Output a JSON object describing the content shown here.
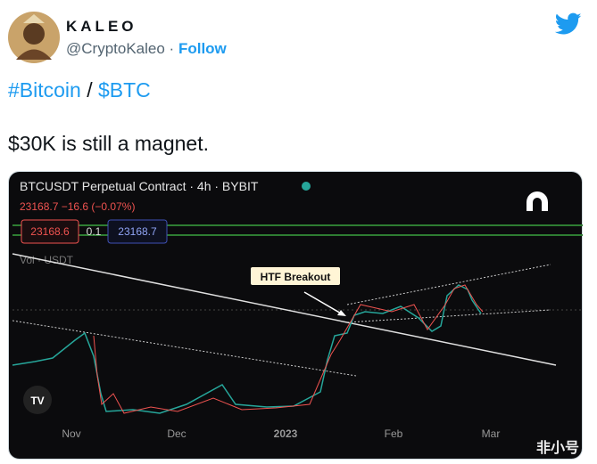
{
  "author": {
    "name": "KALEO",
    "handle": "@CryptoKaleo",
    "separator": "·",
    "follow": "Follow"
  },
  "tweet": {
    "tags": [
      "#Bitcoin",
      "$BTC"
    ],
    "tag_separator": "/",
    "text": "$30K is still a magnet."
  },
  "image": {
    "title": "BTCUSDT Perpetual Contract · 4h · BYBIT",
    "price_line": "23168.7 −16.6 (−0.07%)",
    "bid": "23168.6",
    "spread": "0.1",
    "ask": "23168.7",
    "volume_label": "Vol · USDT",
    "annotation": "HTF Breakout",
    "x_labels": [
      "Nov",
      "Dec",
      "2023",
      "Feb",
      "Mar"
    ],
    "watermark": "非小号"
  }
}
